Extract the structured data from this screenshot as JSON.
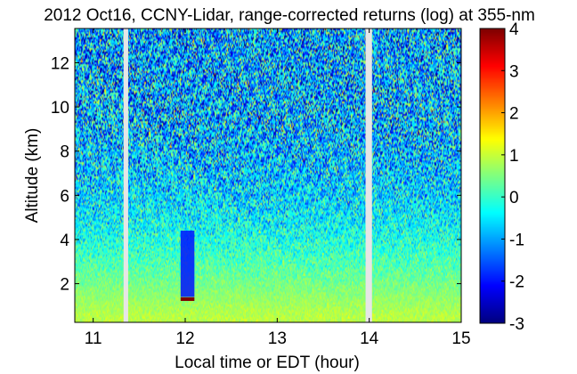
{
  "figure": {
    "title": "2012 Oct16, CCNY-Lidar, range-corrected returns (log) at 355-nm"
  },
  "chart_data": {
    "type": "heatmap",
    "title": "2012 Oct16, CCNY-Lidar, range-corrected returns (log) at 355-nm",
    "xlabel": "Local time or EDT (hour)",
    "ylabel": "Altitude (km)",
    "xlim": [
      10.8,
      15.0
    ],
    "ylim": [
      0.25,
      13.55
    ],
    "xticks": [
      11,
      12,
      13,
      14,
      15
    ],
    "yticks": [
      2,
      4,
      6,
      8,
      10,
      12
    ],
    "colorbar": {
      "range": [
        -3,
        4
      ],
      "ticks": [
        -3,
        -2,
        -1,
        0,
        1,
        2,
        3,
        4
      ],
      "colormap": "jet",
      "colors": [
        "#00008f",
        "#0000ff",
        "#00ffff",
        "#ffff00",
        "#ff0000",
        "#800000"
      ]
    },
    "data_gaps_hour": [
      [
        11.33,
        11.38
      ],
      [
        13.96,
        14.03
      ]
    ],
    "features": [
      {
        "label": "cloud layer",
        "x_start": 11.95,
        "x_end": 12.1,
        "altitude_km": 1.3,
        "value": 4
      },
      {
        "label": "low-signal column",
        "x_start": 11.95,
        "x_end": 12.1,
        "alt_start_km": 1.4,
        "alt_end_km": 4.4,
        "value": -2
      }
    ],
    "profile_mean": [
      {
        "altitude_km": 0.5,
        "value": 0.9
      },
      {
        "altitude_km": 1.5,
        "value": 0.6
      },
      {
        "altitude_km": 2.5,
        "value": 0.3
      },
      {
        "altitude_km": 3.5,
        "value": 0.0
      },
      {
        "altitude_km": 4.5,
        "value": -0.3
      },
      {
        "altitude_km": 6.0,
        "value": -0.6
      },
      {
        "altitude_km": 8.0,
        "value": -0.8
      },
      {
        "altitude_km": 11.0,
        "value": -0.9
      },
      {
        "altitude_km": 13.5,
        "value": -1.0
      }
    ],
    "grid": false,
    "legend": "colorbar-right"
  }
}
